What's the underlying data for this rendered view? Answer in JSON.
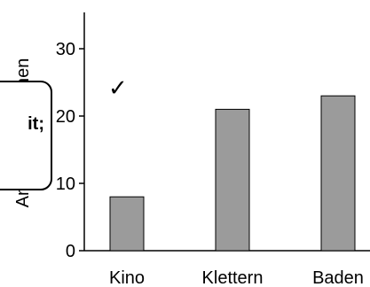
{
  "chart_data": {
    "type": "bar",
    "title": "",
    "xlabel": "",
    "ylabel": "Anzahl Teilnehmen",
    "categories": [
      "Kino",
      "Klettern",
      "Baden"
    ],
    "values": [
      8,
      21,
      23
    ],
    "ylim": [
      0,
      35
    ],
    "yticks": [
      0,
      10,
      20,
      30
    ],
    "grid": false,
    "colors": {
      "bar_fill": "#9b9b9b",
      "bar_stroke": "#000000"
    }
  },
  "annotations": {
    "checkmark": "✓",
    "callout_text": "it;"
  }
}
